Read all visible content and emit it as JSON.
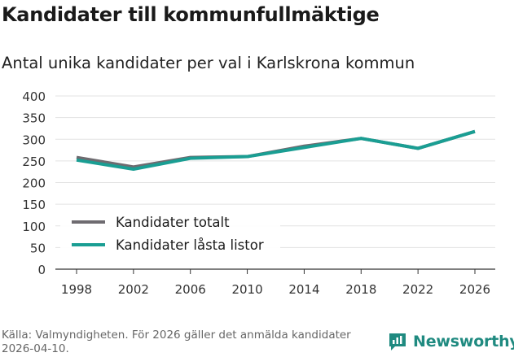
{
  "header": {
    "title": "Kandidater till kommunfullmäktige",
    "subtitle": "Antal unika kandidater per val i Karlskrona kommun"
  },
  "footer": {
    "source": "Källa: Valmyndigheten. För 2026 gäller det anmälda kandidater 2026-04-10.",
    "brand": "Newsworthy"
  },
  "colors": {
    "series_total": "#6e6b70",
    "series_locked": "#1a9e93",
    "grid": "#e3e3e3",
    "axis": "#333333",
    "brand": "#1f8a80"
  },
  "chart_data": {
    "type": "line",
    "title": "Kandidater till kommunfullmäktige",
    "subtitle": "Antal unika kandidater per val i Karlskrona kommun",
    "xlabel": "",
    "ylabel": "",
    "categories": [
      "1998",
      "2002",
      "2006",
      "2010",
      "2014",
      "2018",
      "2022",
      "2026"
    ],
    "ylim": [
      0,
      400
    ],
    "yticks": [
      0,
      50,
      100,
      150,
      200,
      250,
      300,
      350,
      400
    ],
    "grid": true,
    "legend_position": "lower-left",
    "series": [
      {
        "name": "Kandidater totalt",
        "values": [
          258,
          236,
          258,
          260,
          284,
          302,
          279,
          318
        ]
      },
      {
        "name": "Kandidater låsta listor",
        "values": [
          252,
          231,
          256,
          260,
          281,
          302,
          279,
          318
        ]
      }
    ]
  }
}
